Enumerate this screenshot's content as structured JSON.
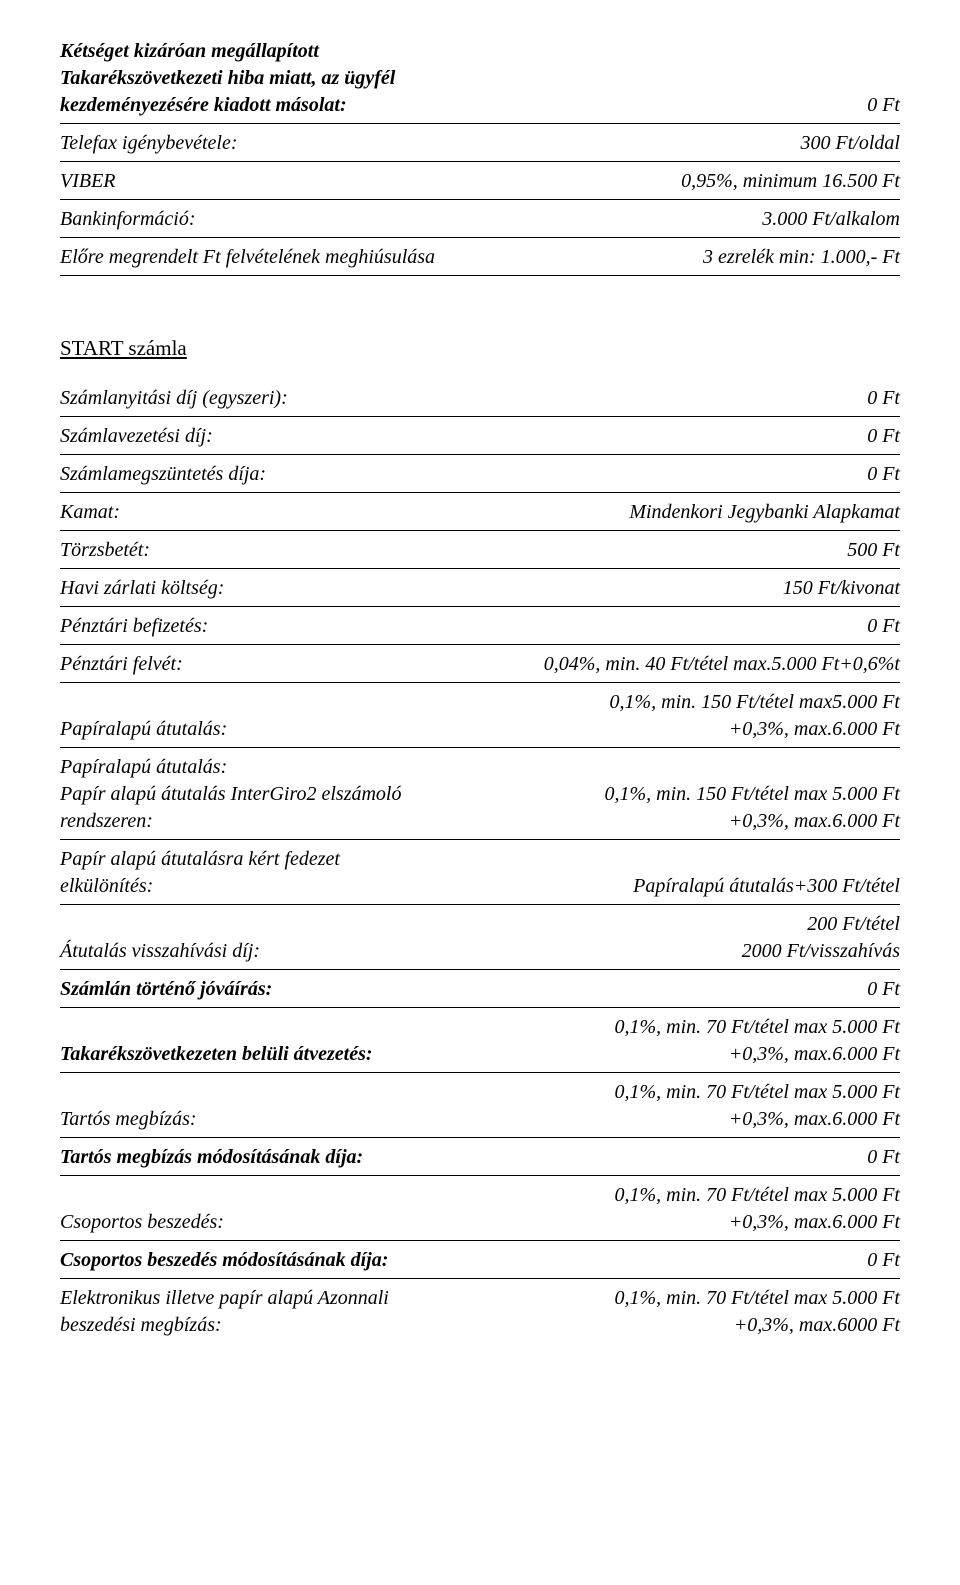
{
  "top": [
    {
      "left": "Kétséget kizáróan megállapított\nTakarékszövetkezeti hiba miatt, az ügyfél\nkezdeményezésére kiadott másolat:",
      "right": "0 Ft",
      "leftBold": true
    },
    {
      "left": "Telefax igénybevétele:",
      "right": "300 Ft/oldal"
    },
    {
      "left": "VIBER",
      "right": "0,95%, minimum 16.500 Ft"
    },
    {
      "left": "Bankinformáció:",
      "right": "3.000 Ft/alkalom"
    },
    {
      "left": "Előre megrendelt Ft felvételének meghiúsulása",
      "right": "3 ezrelék min: 1.000,- Ft"
    }
  ],
  "sectionTitle": "START számla",
  "rows": [
    {
      "left": "Számlanyitási díj (egyszeri):",
      "right": "0 Ft"
    },
    {
      "left": "Számlavezetési díj:",
      "right": "0 Ft"
    },
    {
      "left": "Számlamegszüntetés díja:",
      "right": "0 Ft"
    },
    {
      "left": "Kamat:",
      "right": "Mindenkori Jegybanki Alapkamat"
    },
    {
      "left": "Törzsbetét:",
      "right": "500 Ft"
    },
    {
      "left": "Havi zárlati költség:",
      "right": "150 Ft/kivonat"
    },
    {
      "left": "Pénztári befizetés:",
      "right": "0 Ft"
    },
    {
      "left": "Pénztári felvét:",
      "right": "0,04%, min. 40 Ft/tétel max.5.000 Ft+0,6%t"
    },
    {
      "left": "Papíralapú átutalás:",
      "right": "0,1%, min. 150 Ft/tétel max5.000 Ft\n+0,3%, max.6.000 Ft"
    },
    {
      "left": "Papíralapú átutalás:\nPapír alapú átutalás InterGiro2 elszámoló\nrendszeren:",
      "right": "0,1%, min. 150 Ft/tétel max 5.000 Ft\n+0,3%, max.6.000 Ft"
    },
    {
      "left": "Papír alapú átutalásra kért fedezet\nelkülönítés:",
      "right": "Papíralapú átutalás+300 Ft/tétel"
    },
    {
      "left": "Átutalás visszahívási díj:",
      "right": "200 Ft/tétel\n2000 Ft/visszahívás"
    },
    {
      "left": "Számlán történő jóváírás:",
      "right": "0 Ft",
      "leftBold": true
    },
    {
      "left": "Takarékszövetkezeten belüli átvezetés:",
      "right": "0,1%, min. 70 Ft/tétel max 5.000 Ft\n+0,3%, max.6.000 Ft",
      "leftBold": true
    },
    {
      "left": "Tartós megbízás:",
      "right": "0,1%, min. 70 Ft/tétel max 5.000 Ft\n+0,3%, max.6.000 Ft"
    },
    {
      "left": "Tartós megbízás módosításának díja:",
      "right": "0 Ft",
      "leftBold": true
    },
    {
      "left": "Csoportos beszedés:",
      "right": "0,1%, min. 70 Ft/tétel max 5.000 Ft\n+0,3%, max.6.000 Ft"
    },
    {
      "left": "Csoportos beszedés módosításának díja:",
      "right": "0 Ft",
      "leftBold": true
    },
    {
      "left": "Elektronikus illetve papír alapú Azonnali\nbeszedési megbízás:",
      "right": "0,1%, min. 70 Ft/tétel max 5.000 Ft\n+0,3%, max.6000 Ft",
      "noborder": true
    }
  ]
}
